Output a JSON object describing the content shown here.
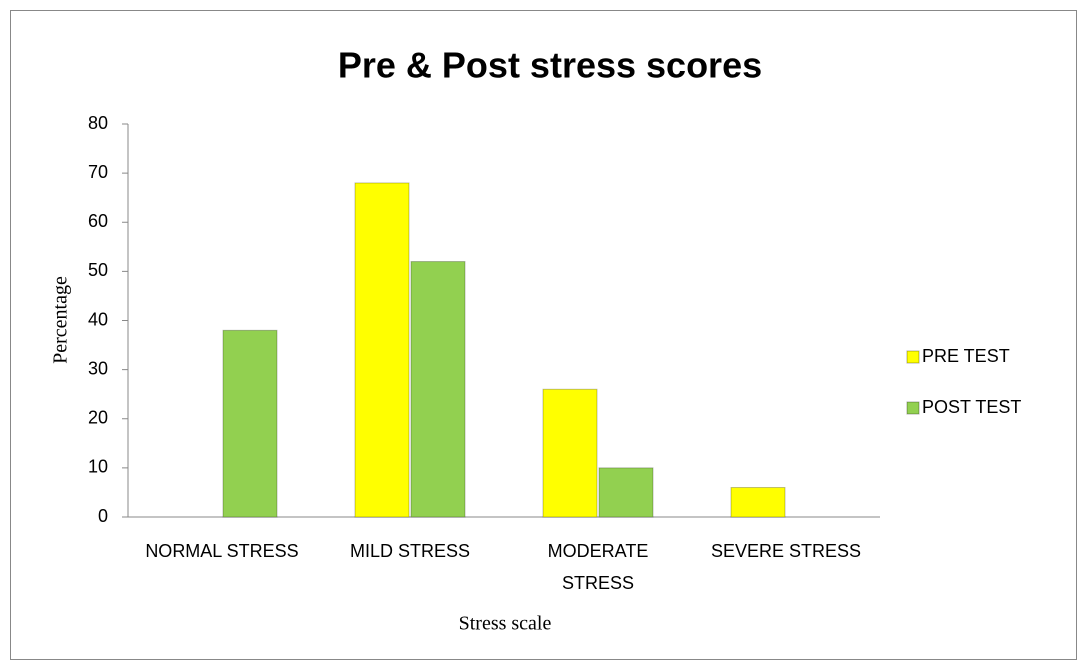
{
  "chart_data": {
    "type": "bar",
    "title": "Pre & Post stress scores",
    "x_label": "Stress scale",
    "y_label": "Percentage",
    "categories": [
      "NORMAL STRESS",
      "MILD STRESS",
      "MODERATE STRESS",
      "SEVERE STRESS"
    ],
    "series": [
      {
        "name": "PRE TEST",
        "color": "#ffff00",
        "values": [
          0,
          68,
          26,
          6
        ]
      },
      {
        "name": "POST TEST",
        "color": "#92d050",
        "values": [
          38,
          52,
          10,
          0
        ]
      }
    ],
    "ylim": [
      0,
      80
    ],
    "yticks": [
      0,
      10,
      20,
      30,
      40,
      50,
      60,
      70,
      80
    ],
    "grid": false,
    "legend": "right"
  }
}
